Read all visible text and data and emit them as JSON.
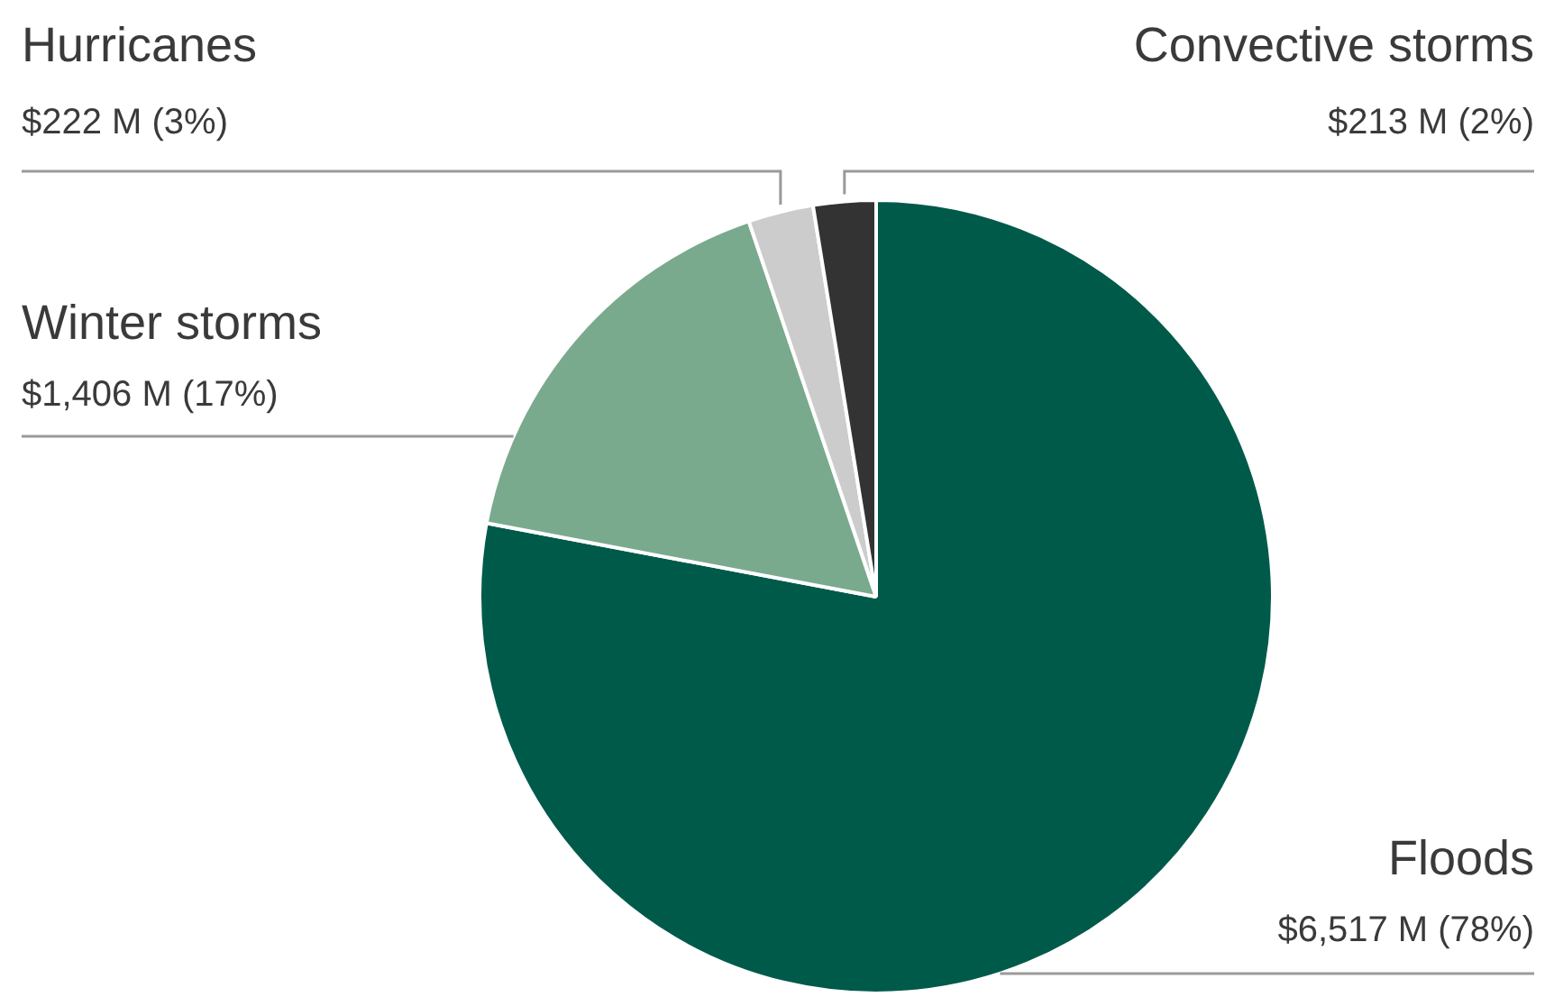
{
  "chart_data": {
    "type": "pie",
    "categories": [
      "Floods",
      "Winter storms",
      "Hurricanes",
      "Convective storms"
    ],
    "values": [
      6517,
      1406,
      222,
      213
    ],
    "value_labels": [
      "$6,517 M (78%)",
      "$1,406 M (17%)",
      "$222 M (3%)",
      "$213 M (2%)"
    ],
    "colors": [
      "#005a4a",
      "#7aaa8e",
      "#cccccc",
      "#333333"
    ],
    "legend": false
  }
}
